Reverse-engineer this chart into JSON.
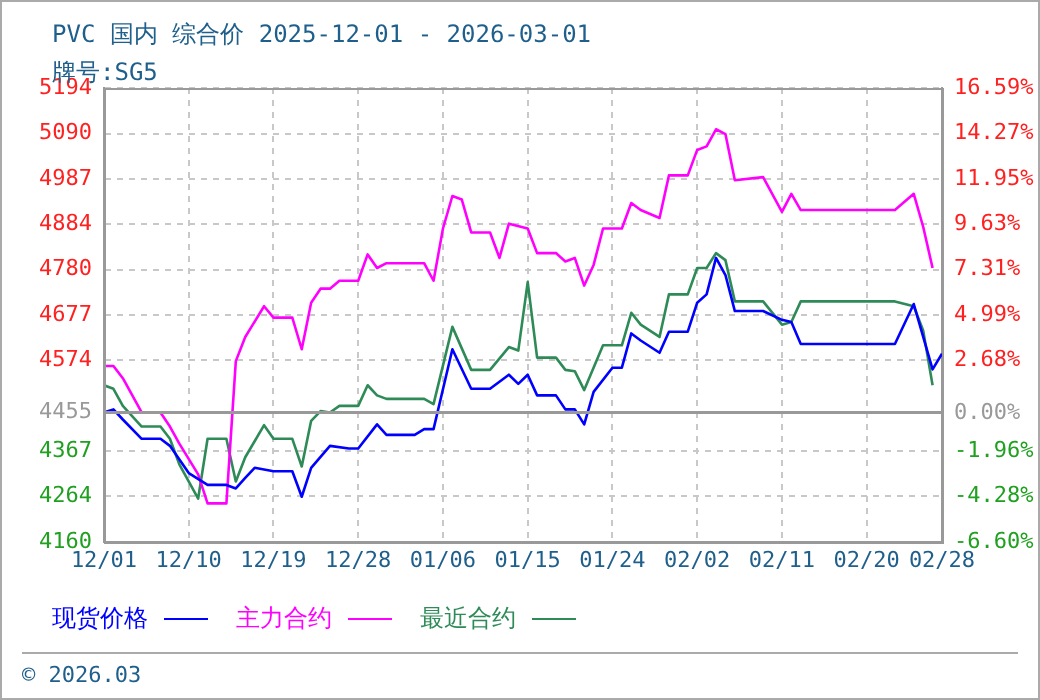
{
  "chart_data": {
    "type": "line",
    "title": "PVC 国内 综合价 2025-12-01 - 2026-03-01",
    "subtitle": "牌号:SG5",
    "annotations": [
      "© 2026.03"
    ],
    "xlim": [
      "2025-12-01",
      "2026-02-28"
    ],
    "xticks": [
      {
        "value": "2025-12-01",
        "label": "12/01"
      },
      {
        "value": "2025-12-10",
        "label": "12/10"
      },
      {
        "value": "2025-12-19",
        "label": "12/19"
      },
      {
        "value": "2025-12-28",
        "label": "12/28"
      },
      {
        "value": "2026-01-06",
        "label": "01/06"
      },
      {
        "value": "2026-01-15",
        "label": "01/15"
      },
      {
        "value": "2026-01-24",
        "label": "01/24"
      },
      {
        "value": "2026-02-02",
        "label": "02/02"
      },
      {
        "value": "2026-02-11",
        "label": "02/11"
      },
      {
        "value": "2026-02-20",
        "label": "02/20"
      },
      {
        "value": "2026-02-28",
        "label": "02/28"
      }
    ],
    "ylim": [
      4160,
      5194
    ],
    "yticks": [
      4160,
      4264,
      4367,
      4455,
      4574,
      4677,
      4780,
      4884,
      4987,
      5090,
      5194
    ],
    "y2lim": [
      -6.6,
      16.59
    ],
    "y2ticks": [
      {
        "value": -6.6,
        "label": "-6.60%"
      },
      {
        "value": -4.28,
        "label": "-4.28%"
      },
      {
        "value": -1.96,
        "label": "-1.96%"
      },
      {
        "value": 0,
        "label": "0.00%"
      },
      {
        "value": 2.68,
        "label": "2.68%"
      },
      {
        "value": 4.99,
        "label": "4.99%"
      },
      {
        "value": 7.31,
        "label": "7.31%"
      },
      {
        "value": 9.63,
        "label": "9.63%"
      },
      {
        "value": 11.95,
        "label": "11.95%"
      },
      {
        "value": 14.27,
        "label": "14.27%"
      },
      {
        "value": 16.59,
        "label": "16.59%"
      }
    ],
    "ref_lines": [
      {
        "axis": "y",
        "value": 4455,
        "color": "#999999"
      }
    ],
    "grid": true,
    "legend": "bottom",
    "marker": "none",
    "line_style": "solid",
    "series": [
      {
        "name": "现货价格",
        "color": "#0000ff",
        "x": [
          "2025-12-01",
          "2025-12-02",
          "2025-12-03",
          "2025-12-05",
          "2025-12-07",
          "2025-12-08",
          "2025-12-10",
          "2025-12-12",
          "2025-12-14",
          "2025-12-15",
          "2025-12-16",
          "2025-12-17",
          "2025-12-19",
          "2025-12-21",
          "2025-12-22",
          "2025-12-23",
          "2025-12-25",
          "2025-12-27",
          "2025-12-28",
          "2025-12-30",
          "2025-12-31",
          "2026-01-03",
          "2026-01-04",
          "2026-01-05",
          "2026-01-07",
          "2026-01-09",
          "2026-01-11",
          "2026-01-13",
          "2026-01-14",
          "2026-01-15",
          "2026-01-16",
          "2026-01-18",
          "2026-01-19",
          "2026-01-20",
          "2026-01-21",
          "2026-01-22",
          "2026-01-24",
          "2026-01-25",
          "2026-01-26",
          "2026-01-27",
          "2026-01-29",
          "2026-01-30",
          "2026-02-01",
          "2026-02-02",
          "2026-02-03",
          "2026-02-04",
          "2026-02-05",
          "2026-02-06",
          "2026-02-09",
          "2026-02-11",
          "2026-02-12",
          "2026-02-13",
          "2026-02-23",
          "2026-02-25",
          "2026-02-27",
          "2026-02-28"
        ],
        "values": [
          4455,
          4462,
          4439,
          4395,
          4395,
          4379,
          4317,
          4290,
          4290,
          4282,
          4306,
          4329,
          4321,
          4321,
          4263,
          4329,
          4379,
          4373,
          4373,
          4428,
          4404,
          4404,
          4417,
          4417,
          4599,
          4509,
          4509,
          4541,
          4520,
          4541,
          4494,
          4494,
          4462,
          4462,
          4428,
          4502,
          4557,
          4557,
          4635,
          4619,
          4591,
          4639,
          4639,
          4705,
          4724,
          4807,
          4768,
          4686,
          4686,
          4666,
          4661,
          4611,
          4611,
          4702,
          4553,
          4589
        ]
      },
      {
        "name": "主力合约",
        "color": "#ff00ff",
        "x": [
          "2025-12-01",
          "2025-12-02",
          "2025-12-03",
          "2025-12-05",
          "2025-12-07",
          "2025-12-08",
          "2025-12-09",
          "2025-12-11",
          "2025-12-12",
          "2025-12-14",
          "2025-12-15",
          "2025-12-16",
          "2025-12-18",
          "2025-12-19",
          "2025-12-21",
          "2025-12-22",
          "2025-12-23",
          "2025-12-24",
          "2025-12-25",
          "2025-12-26",
          "2025-12-28",
          "2025-12-29",
          "2025-12-30",
          "2025-12-31",
          "2026-01-04",
          "2026-01-05",
          "2026-01-06",
          "2026-01-07",
          "2026-01-08",
          "2026-01-09",
          "2026-01-11",
          "2026-01-12",
          "2026-01-13",
          "2026-01-15",
          "2026-01-16",
          "2026-01-18",
          "2026-01-19",
          "2026-01-20",
          "2026-01-21",
          "2026-01-22",
          "2026-01-23",
          "2026-01-25",
          "2026-01-26",
          "2026-01-27",
          "2026-01-29",
          "2026-01-30",
          "2026-02-01",
          "2026-02-02",
          "2026-02-03",
          "2026-02-04",
          "2026-02-05",
          "2026-02-06",
          "2026-02-09",
          "2026-02-11",
          "2026-02-12",
          "2026-02-13",
          "2026-02-23",
          "2026-02-25",
          "2026-02-26",
          "2026-02-27"
        ],
        "values": [
          4561,
          4561,
          4533,
          4455,
          4455,
          4423,
          4384,
          4314,
          4248,
          4248,
          4572,
          4627,
          4697,
          4671,
          4671,
          4599,
          4705,
          4737,
          4737,
          4755,
          4755,
          4815,
          4784,
          4795,
          4795,
          4755,
          4874,
          4948,
          4940,
          4865,
          4865,
          4807,
          4885,
          4874,
          4818,
          4818,
          4799,
          4807,
          4744,
          4791,
          4874,
          4874,
          4932,
          4916,
          4898,
          4995,
          4995,
          5053,
          5061,
          5100,
          5089,
          4984,
          4991,
          4912,
          4953,
          4916,
          4916,
          4953,
          4878,
          4784
        ]
      },
      {
        "name": "最近合约",
        "color": "#2e8b57",
        "x": [
          "2025-12-01",
          "2025-12-02",
          "2025-12-03",
          "2025-12-05",
          "2025-12-07",
          "2025-12-08",
          "2025-12-09",
          "2025-12-11",
          "2025-12-12",
          "2025-12-14",
          "2025-12-15",
          "2025-12-16",
          "2025-12-18",
          "2025-12-19",
          "2025-12-21",
          "2025-12-22",
          "2025-12-23",
          "2025-12-24",
          "2025-12-25",
          "2025-12-26",
          "2025-12-28",
          "2025-12-29",
          "2025-12-30",
          "2025-12-31",
          "2026-01-04",
          "2026-01-05",
          "2026-01-07",
          "2026-01-09",
          "2026-01-11",
          "2026-01-13",
          "2026-01-14",
          "2026-01-15",
          "2026-01-16",
          "2026-01-18",
          "2026-01-19",
          "2026-01-20",
          "2026-01-21",
          "2026-01-23",
          "2026-01-25",
          "2026-01-26",
          "2026-01-27",
          "2026-01-29",
          "2026-01-30",
          "2026-02-01",
          "2026-02-02",
          "2026-02-03",
          "2026-02-04",
          "2026-02-05",
          "2026-02-06",
          "2026-02-09",
          "2026-02-11",
          "2026-02-12",
          "2026-02-13",
          "2026-02-23",
          "2026-02-25",
          "2026-02-26",
          "2026-02-27"
        ],
        "values": [
          4517,
          4509,
          4470,
          4423,
          4423,
          4395,
          4337,
          4259,
          4395,
          4395,
          4298,
          4353,
          4426,
          4395,
          4395,
          4332,
          4436,
          4458,
          4455,
          4470,
          4470,
          4517,
          4494,
          4486,
          4486,
          4474,
          4650,
          4552,
          4552,
          4604,
          4596,
          4752,
          4580,
          4580,
          4552,
          4549,
          4506,
          4608,
          4608,
          4682,
          4655,
          4627,
          4724,
          4724,
          4784,
          4784,
          4818,
          4802,
          4708,
          4708,
          4655,
          4661,
          4708,
          4708,
          4697,
          4642,
          4517
        ]
      }
    ]
  }
}
